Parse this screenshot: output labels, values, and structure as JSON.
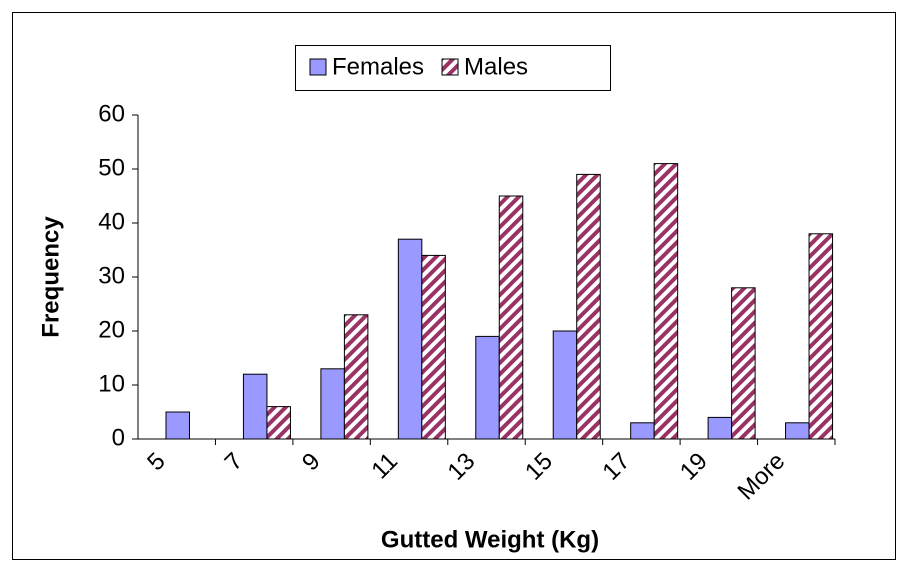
{
  "chart_data": {
    "type": "bar",
    "x_label": "Gutted Weight (Kg)",
    "y_label": "Frequency",
    "categories": [
      "5",
      "7",
      "9",
      "11",
      "13",
      "15",
      "17",
      "19",
      "More"
    ],
    "series": [
      {
        "name": "Females",
        "color": "#9999ff",
        "hatch": false,
        "values": [
          5,
          12,
          13,
          37,
          19,
          20,
          3,
          4,
          3
        ]
      },
      {
        "name": "Males",
        "color": "#993366",
        "hatch": true,
        "values": [
          0,
          6,
          23,
          34,
          45,
          49,
          51,
          28,
          38
        ]
      }
    ],
    "ylim": [
      0,
      60
    ],
    "yticks": [
      0,
      10,
      20,
      30,
      40,
      50,
      60
    ],
    "grid": false,
    "legend": "top"
  }
}
